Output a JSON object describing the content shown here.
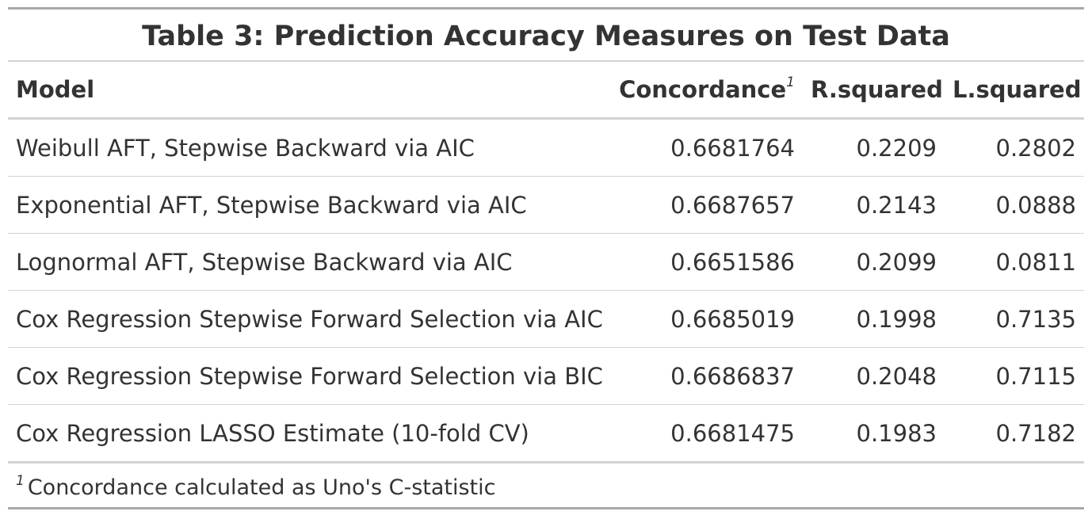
{
  "table": {
    "title": "Table 3: Prediction Accuracy Measures on Test Data",
    "columns": [
      "Model",
      "Concordance",
      "R.squared",
      "L.squared"
    ],
    "concordance_footnote_mark": "1",
    "rows": [
      {
        "model": "Weibull AFT, Stepwise Backward via AIC",
        "concordance": "0.6681764",
        "r_squared": "0.2209",
        "l_squared": "0.2802"
      },
      {
        "model": "Exponential AFT, Stepwise Backward via AIC",
        "concordance": "0.6687657",
        "r_squared": "0.2143",
        "l_squared": "0.0888"
      },
      {
        "model": "Lognormal AFT, Stepwise Backward via AIC",
        "concordance": "0.6651586",
        "r_squared": "0.2099",
        "l_squared": "0.0811"
      },
      {
        "model": "Cox Regression Stepwise Forward Selection via AIC",
        "concordance": "0.6685019",
        "r_squared": "0.1998",
        "l_squared": "0.7135"
      },
      {
        "model": "Cox Regression Stepwise Forward Selection via BIC",
        "concordance": "0.6686837",
        "r_squared": "0.2048",
        "l_squared": "0.7115"
      },
      {
        "model": "Cox Regression LASSO Estimate (10-fold CV)",
        "concordance": "0.6681475",
        "r_squared": "0.1983",
        "l_squared": "0.7182"
      }
    ],
    "footnote": {
      "mark": "1",
      "text": "Concordance calculated as Uno's C-statistic"
    }
  }
}
